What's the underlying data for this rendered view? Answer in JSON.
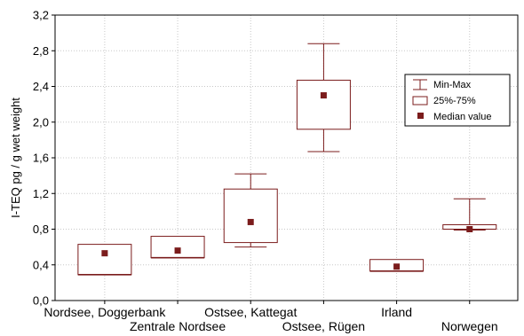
{
  "chart_data": {
    "type": "box",
    "ylabel": "I-TEQ pg / g wet weight",
    "ylim": [
      0,
      3.2
    ],
    "yticks": [
      "0,0",
      "0,4",
      "0,8",
      "1,2",
      "1,6",
      "2,0",
      "2,4",
      "2,8",
      "3,2"
    ],
    "grid": true,
    "legend_position": "top-right",
    "legend": [
      "Min-Max",
      "25%-75%",
      "Median value"
    ],
    "color": "#7b1c1c",
    "categories": [
      "Nordsee, Doggerbank",
      "Zentrale Nordsee",
      "Ostsee, Kattegat",
      "Ostsee, Rügen",
      "Irland",
      "Norwegen"
    ],
    "series": [
      {
        "category": "Nordsee, Doggerbank",
        "min": 0.29,
        "q1": 0.29,
        "median": 0.53,
        "q3": 0.63,
        "max": 0.63
      },
      {
        "category": "Zentrale Nordsee",
        "min": 0.48,
        "q1": 0.48,
        "median": 0.56,
        "q3": 0.72,
        "max": 0.72
      },
      {
        "category": "Ostsee, Kattegat",
        "min": 0.6,
        "q1": 0.65,
        "median": 0.88,
        "q3": 1.25,
        "max": 1.42
      },
      {
        "category": "Ostsee, Rügen",
        "min": 1.67,
        "q1": 1.92,
        "median": 2.3,
        "q3": 2.47,
        "max": 2.88
      },
      {
        "category": "Irland",
        "min": 0.33,
        "q1": 0.33,
        "median": 0.38,
        "q3": 0.46,
        "max": 0.46
      },
      {
        "category": "Norwegen",
        "min": 0.79,
        "q1": 0.8,
        "median": 0.8,
        "q3": 0.85,
        "max": 1.14
      }
    ]
  }
}
